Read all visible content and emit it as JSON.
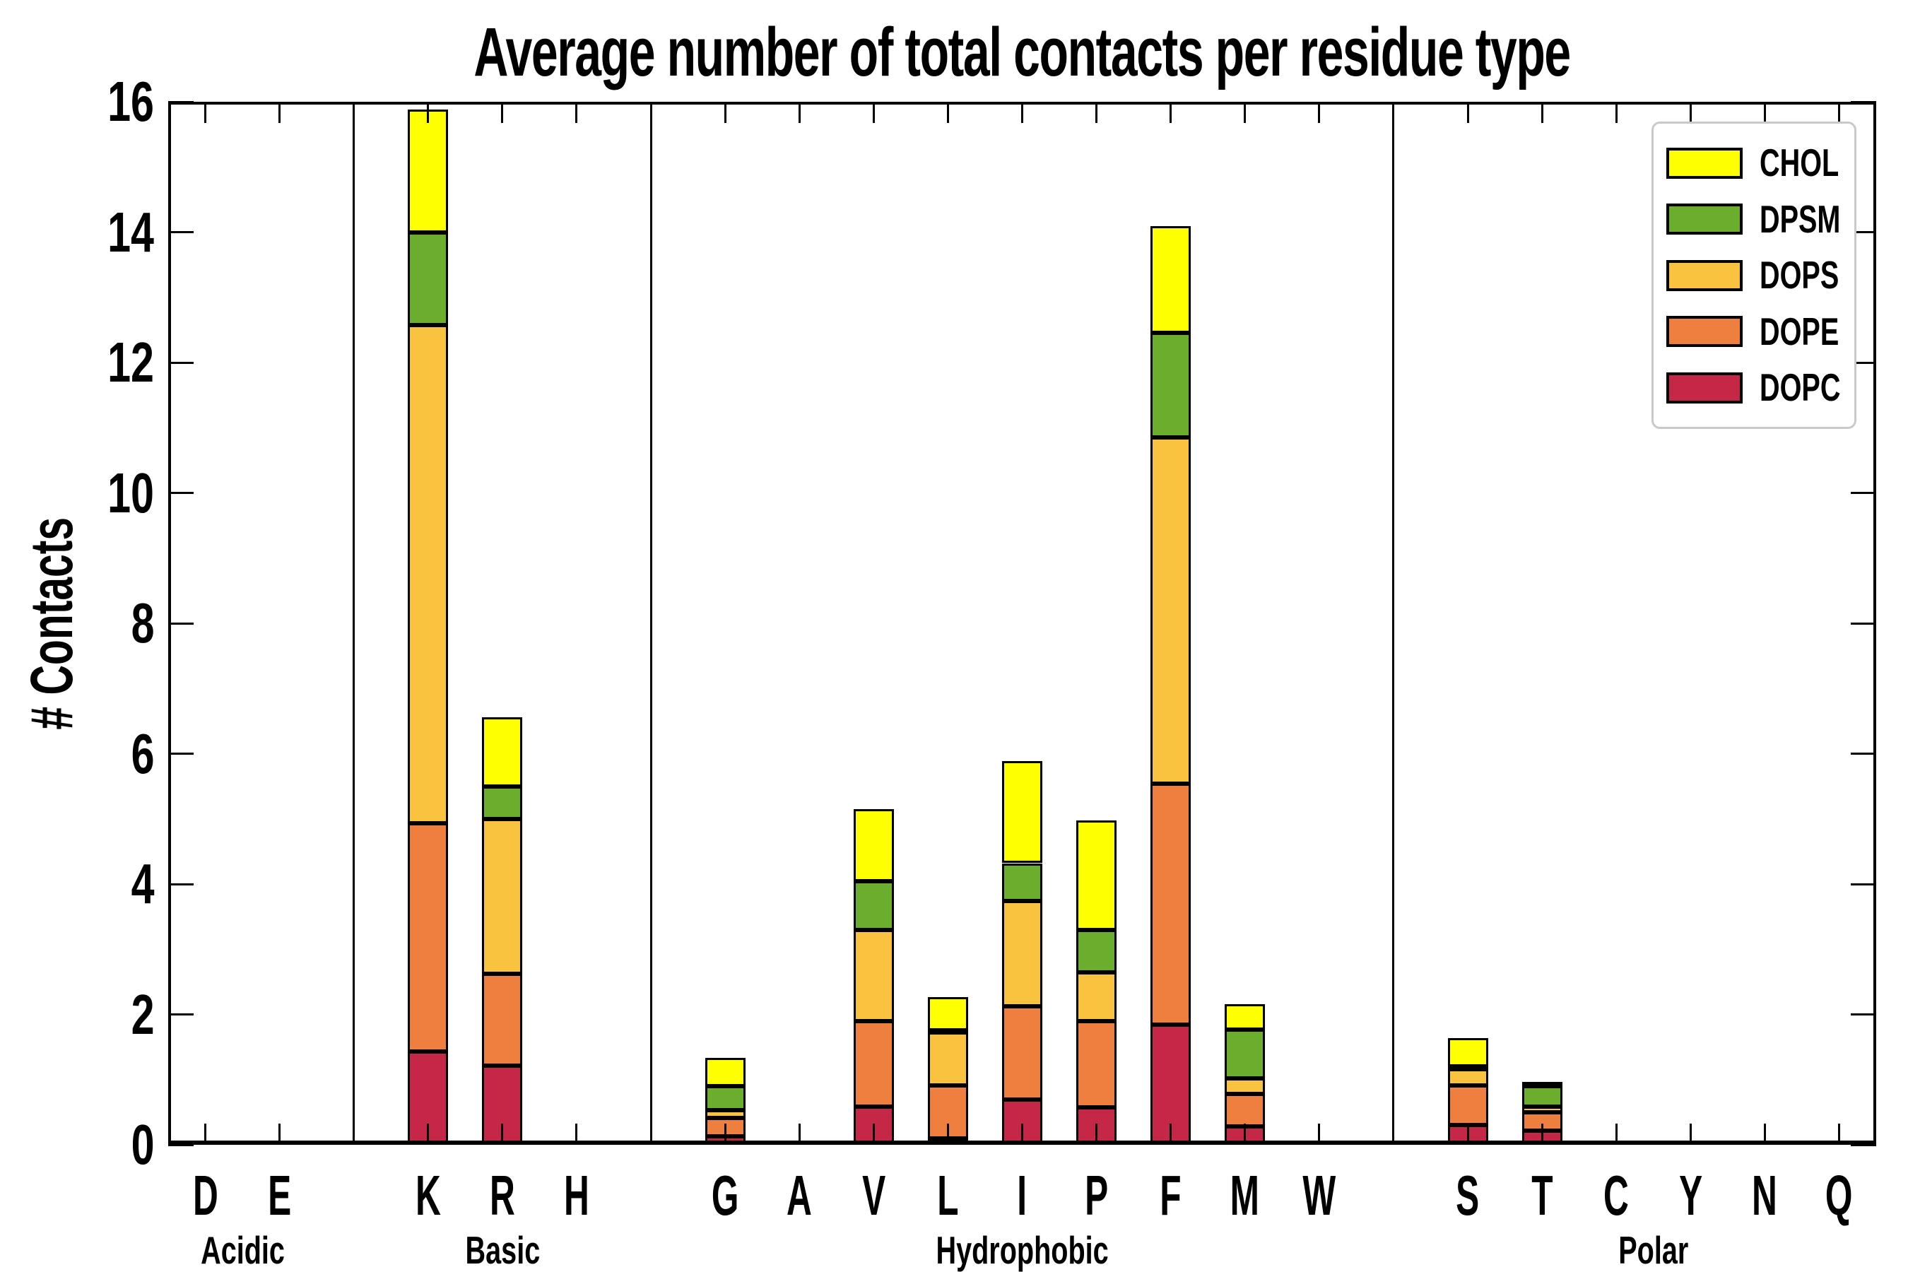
{
  "title": "Average number of total contacts per residue type",
  "y_axis": {
    "label": "# Contacts",
    "tick_labels": [
      "0",
      "2",
      "4",
      "6",
      "8",
      "10",
      "12",
      "14",
      "16"
    ]
  },
  "legend": {
    "entries": [
      {
        "label": "CHOL",
        "color": "#FEFF00"
      },
      {
        "label": "DPSM",
        "color": "#6BAD2C"
      },
      {
        "label": "DOPS",
        "color": "#F9C340"
      },
      {
        "label": "DOPE",
        "color": "#EF7F3F"
      },
      {
        "label": "DOPC",
        "color": "#C52846"
      }
    ]
  },
  "chart_data": {
    "type": "bar",
    "stacked": true,
    "title": "Average number of total contacts per residue type",
    "xlabel": "",
    "ylabel": "# Contacts",
    "ylim": [
      0,
      16
    ],
    "yticks": [
      0,
      2,
      4,
      6,
      8,
      10,
      12,
      14,
      16
    ],
    "grid": false,
    "legend_position": "upper right",
    "series_bottom_to_top": [
      "DOPC",
      "DOPE",
      "DOPS",
      "DPSM",
      "CHOL"
    ],
    "series_colors": {
      "DOPC": "#C52846",
      "DOPE": "#EF7F3F",
      "DOPS": "#F9C340",
      "DPSM": "#6BAD2C",
      "CHOL": "#FEFF00"
    },
    "groups": [
      {
        "label": "Acidic",
        "categories": [
          "D",
          "E"
        ]
      },
      {
        "label": "Basic",
        "categories": [
          "K",
          "R",
          "H"
        ]
      },
      {
        "label": "Hydrophobic",
        "categories": [
          "G",
          "A",
          "V",
          "L",
          "I",
          "P",
          "F",
          "M",
          "W"
        ]
      },
      {
        "label": "Polar",
        "categories": [
          "S",
          "T",
          "C",
          "Y",
          "N",
          "Q"
        ]
      }
    ],
    "values": {
      "D": [
        0.04,
        0,
        0,
        0,
        0
      ],
      "E": [
        0.04,
        0,
        0,
        0,
        0
      ],
      "K": [
        1.43,
        3.5,
        7.64,
        1.43,
        1.88
      ],
      "R": [
        1.21,
        1.41,
        2.38,
        0.5,
        1.06
      ],
      "H": [
        0.04,
        0,
        0,
        0,
        0
      ],
      "G": [
        0.13,
        0.28,
        0.12,
        0.37,
        0.43
      ],
      "A": [
        0.04,
        0,
        0,
        0,
        0
      ],
      "V": [
        0.59,
        1.31,
        1.4,
        0.74,
        1.11
      ],
      "L": [
        0.1,
        0.81,
        0.81,
        0.04,
        0.51
      ],
      "I": [
        0.69,
        1.44,
        1.61,
        0.58,
        1.57
      ],
      "P": [
        0.58,
        1.32,
        0.74,
        0.66,
        1.68
      ],
      "F": [
        1.84,
        3.7,
        5.31,
        1.61,
        1.63
      ],
      "M": [
        0.28,
        0.5,
        0.24,
        0.75,
        0.39
      ],
      "W": [
        0.03,
        0,
        0,
        0,
        0
      ],
      "S": [
        0.3,
        0.61,
        0.25,
        0.04,
        0.44
      ],
      "T": [
        0.22,
        0.28,
        0.09,
        0.31,
        0.06
      ],
      "C": [
        0.03,
        0,
        0,
        0,
        0
      ],
      "Y": [
        0.03,
        0,
        0,
        0,
        0
      ],
      "N": [
        0.03,
        0,
        0,
        0,
        0
      ],
      "Q": [
        0.03,
        0,
        0,
        0,
        0
      ]
    }
  }
}
